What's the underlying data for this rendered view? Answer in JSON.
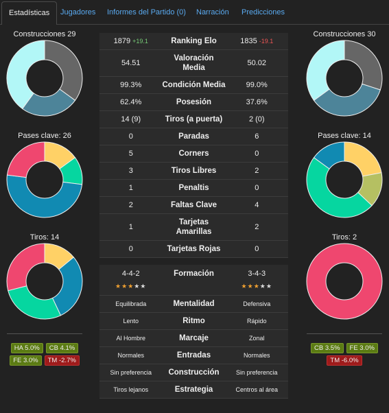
{
  "tabs": [
    "Estadísticas",
    "Jugadores",
    "Informes del Partido (0)",
    "Narración",
    "Predicciones"
  ],
  "active_tab": 0,
  "left": {
    "charts": [
      {
        "title": "Construcciones 29",
        "segments": [
          {
            "color": "#666666",
            "value": 35
          },
          {
            "color": "#4d8499",
            "value": 25
          },
          {
            "color": "#b2f7f7",
            "value": 40
          }
        ]
      },
      {
        "title": "Pases clave: 26",
        "segments": [
          {
            "color": "#ffd166",
            "value": 15
          },
          {
            "color": "#06d6a0",
            "value": 12
          },
          {
            "color": "#118ab2",
            "value": 50
          },
          {
            "color": "#ef476f",
            "value": 23
          }
        ]
      },
      {
        "title": "Tiros: 14",
        "segments": [
          {
            "color": "#ffd166",
            "value": 14
          },
          {
            "color": "#118ab2",
            "value": 29
          },
          {
            "color": "#06d6a0",
            "value": 28
          },
          {
            "color": "#ef476f",
            "value": 29
          }
        ]
      }
    ],
    "tags": [
      {
        "text": "HA 5.0%",
        "tone": "positive"
      },
      {
        "text": "CB 4.1%",
        "tone": "positive"
      },
      {
        "text": "FE 3.0%",
        "tone": "positive"
      },
      {
        "text": "TM -2.7%",
        "tone": "negative"
      }
    ]
  },
  "right": {
    "charts": [
      {
        "title": "Construcciones 30",
        "segments": [
          {
            "color": "#666666",
            "value": 30
          },
          {
            "color": "#4d8499",
            "value": 35
          },
          {
            "color": "#b2f7f7",
            "value": 35
          }
        ]
      },
      {
        "title": "Pases clave: 14",
        "segments": [
          {
            "color": "#ffd166",
            "value": 22
          },
          {
            "color": "#b5c062",
            "value": 15
          },
          {
            "color": "#06d6a0",
            "value": 48
          },
          {
            "color": "#118ab2",
            "value": 15
          }
        ]
      },
      {
        "title": "Tiros: 2",
        "segments": [
          {
            "color": "#ef476f",
            "value": 100
          }
        ]
      }
    ],
    "tags": [
      {
        "text": "CB 3.5%",
        "tone": "positive"
      },
      {
        "text": "FE 3.0%",
        "tone": "positive"
      },
      {
        "text": "TM -6.0%",
        "tone": "negative"
      }
    ]
  },
  "stats": {
    "rows": [
      {
        "left": "1879",
        "left_delta": "+19.1",
        "label": "Ranking Elo",
        "right": "1835",
        "right_delta": "-19.1"
      },
      {
        "left": "54.51",
        "label": "Valoración Media",
        "right": "50.02"
      },
      {
        "left": "99.3%",
        "label": "Condición Media",
        "right": "99.0%"
      },
      {
        "left": "62.4%",
        "label": "Posesión",
        "right": "37.6%"
      },
      {
        "left": "14 (9)",
        "label": "Tiros (a puerta)",
        "right": "2 (0)"
      },
      {
        "left": "0",
        "label": "Paradas",
        "right": "6"
      },
      {
        "left": "5",
        "label": "Corners",
        "right": "0"
      },
      {
        "left": "3",
        "label": "Tiros Libres",
        "right": "2"
      },
      {
        "left": "1",
        "label": "Penaltis",
        "right": "0"
      },
      {
        "left": "2",
        "label": "Faltas Clave",
        "right": "4"
      },
      {
        "left": "1",
        "label": "Tarjetas Amarillas",
        "right": "2"
      },
      {
        "left": "0",
        "label": "Tarjetas Rojas",
        "right": "0"
      }
    ],
    "formation": {
      "left": "4-4-2",
      "label": "Formación",
      "right": "3-4-3",
      "left_stars": 3,
      "right_stars": 3,
      "max_stars": 5
    },
    "tactics": [
      {
        "left": "Equilibrada",
        "label": "Mentalidad",
        "right": "Defensiva"
      },
      {
        "left": "Lento",
        "label": "Ritmo",
        "right": "Rápido"
      },
      {
        "left": "Al Hombre",
        "label": "Marcaje",
        "right": "Zonal"
      },
      {
        "left": "Normales",
        "label": "Entradas",
        "right": "Normales"
      },
      {
        "left": "Sin preferencia",
        "label": "Construcción",
        "right": "Sin preferencia"
      },
      {
        "left": "Tiros lejanos",
        "label": "Estrategia",
        "right": "Centros al área"
      }
    ]
  }
}
